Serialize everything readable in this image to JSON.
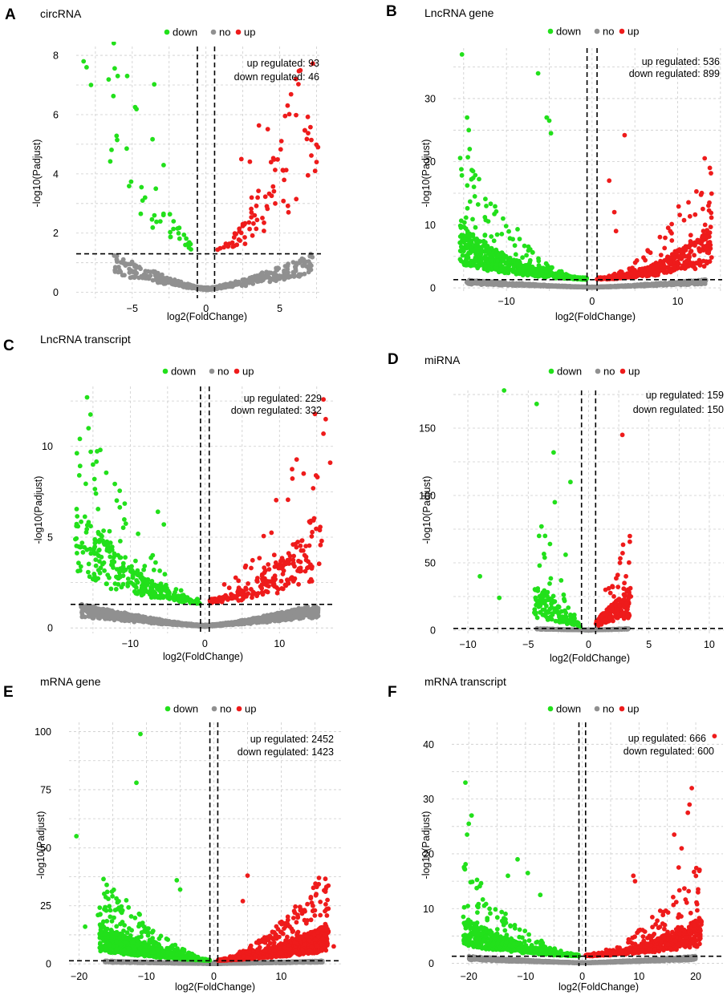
{
  "colors": {
    "down": "#22e01b",
    "no": "#909090",
    "up": "#ee1b1b",
    "grid": "#cccccc"
  },
  "legend": {
    "down": "down",
    "no": "no",
    "up": "up"
  },
  "chart_data": [
    {
      "panel": "A",
      "title": "circRNA",
      "type": "scatter",
      "xlabel": "log2(FoldChange)",
      "ylabel": "-log10(Padjust)",
      "xlim": [
        -8.8,
        7.8
      ],
      "ylim": [
        -0.2,
        8.3
      ],
      "xticks": [
        -5,
        0,
        5
      ],
      "yticks": [
        0,
        2,
        4,
        6,
        8
      ],
      "fc_threshold": 0.585,
      "p_threshold": 1.3,
      "up_label": "up regulated: 93",
      "down_label": "down regulated: 46",
      "counts": {
        "up": 93,
        "down": 46
      },
      "shape": {
        "xmin": -6.6,
        "xmax": 7.6,
        "amp": 2.6,
        "expo": 2.2,
        "ymaxNo": 1.3
      },
      "n": {
        "no": 520,
        "down": 46,
        "up": 93
      },
      "highlights": [
        {
          "x": -8.3,
          "y": 7.8,
          "g": "down"
        },
        {
          "x": -8.1,
          "y": 7.6,
          "g": "down"
        },
        {
          "x": -7.8,
          "y": 7.0,
          "g": "down"
        },
        {
          "x": -3.4,
          "y": 3.5,
          "g": "down"
        },
        {
          "x": -4.3,
          "y": 3.1,
          "g": "down"
        },
        {
          "x": -2.2,
          "y": 2.4,
          "g": "down"
        },
        {
          "x": -3.5,
          "y": 2.6,
          "g": "down"
        },
        {
          "x": -1.4,
          "y": 1.6,
          "g": "down"
        },
        {
          "x": 6.1,
          "y": 7.2,
          "g": "up"
        },
        {
          "x": 7.6,
          "y": 4.9,
          "g": "up"
        },
        {
          "x": 7.4,
          "y": 4.1,
          "g": "up"
        },
        {
          "x": 7.5,
          "y": 4.4,
          "g": "up"
        },
        {
          "x": 2.4,
          "y": 4.5,
          "g": "up"
        },
        {
          "x": 3.1,
          "y": 3.2,
          "g": "up"
        },
        {
          "x": 4.7,
          "y": 3.0,
          "g": "up"
        },
        {
          "x": 3.3,
          "y": 2.6,
          "g": "up"
        }
      ]
    },
    {
      "panel": "B",
      "title": "LncRNA gene",
      "type": "scatter",
      "xlabel": "log2(FoldChange)",
      "ylabel": "-log10(Padjust)",
      "xlim": [
        -16.2,
        15.2
      ],
      "ylim": [
        -0.5,
        38
      ],
      "xticks": [
        -10,
        0,
        10
      ],
      "yticks": [
        0,
        10,
        20,
        30
      ],
      "fc_threshold": 0.585,
      "p_threshold": 1.3,
      "up_label": "up regulated: 536",
      "down_label": "down regulated: 899",
      "counts": {
        "up": 536,
        "down": 899
      },
      "shape": {
        "xmin": -15.5,
        "xmax": 14.0,
        "amp": 2.2,
        "expo": 2.0,
        "ymaxNo": 1.3
      },
      "n": {
        "no": 1400,
        "down": 700,
        "up": 450
      },
      "highlights": [
        {
          "x": -15.2,
          "y": 37.0,
          "g": "down"
        },
        {
          "x": -6.3,
          "y": 34.0,
          "g": "down"
        },
        {
          "x": -14.6,
          "y": 27.0,
          "g": "down"
        },
        {
          "x": -5.3,
          "y": 27.0,
          "g": "down"
        },
        {
          "x": -5.0,
          "y": 26.5,
          "g": "down"
        },
        {
          "x": -14.4,
          "y": 25.0,
          "g": "down"
        },
        {
          "x": -4.8,
          "y": 24.5,
          "g": "down"
        },
        {
          "x": -14.3,
          "y": 22.0,
          "g": "down"
        },
        {
          "x": -13.9,
          "y": 18.5,
          "g": "down"
        },
        {
          "x": -13.8,
          "y": 16.0,
          "g": "down"
        },
        {
          "x": -13.7,
          "y": 14.5,
          "g": "down"
        },
        {
          "x": -8.7,
          "y": 9.3,
          "g": "down"
        },
        {
          "x": 3.8,
          "y": 24.2,
          "g": "up"
        },
        {
          "x": 13.7,
          "y": 13.5,
          "g": "up"
        },
        {
          "x": 13.2,
          "y": 10.0,
          "g": "up"
        },
        {
          "x": 13.0,
          "y": 9.0,
          "g": "up"
        },
        {
          "x": 12.5,
          "y": 7.5,
          "g": "up"
        },
        {
          "x": 2.0,
          "y": 17.0,
          "g": "up"
        },
        {
          "x": 2.6,
          "y": 12.0,
          "g": "up"
        },
        {
          "x": 2.8,
          "y": 9.0,
          "g": "up"
        }
      ]
    },
    {
      "panel": "C",
      "title": "LncRNA transcript",
      "type": "scatter",
      "xlabel": "log2(FoldChange)",
      "ylabel": "-log10(Padjust)",
      "xlim": [
        -18,
        17.5
      ],
      "ylim": [
        -0.3,
        13.3
      ],
      "xticks": [
        -10,
        0,
        10
      ],
      "yticks": [
        0,
        5,
        10
      ],
      "fc_threshold": 0.585,
      "p_threshold": 1.3,
      "up_label": "up regulated: 229",
      "down_label": "down regulated: 332",
      "counts": {
        "up": 229,
        "down": 332
      },
      "shape": {
        "xmin": -17.5,
        "xmax": 16.0,
        "amp": 1.4,
        "expo": 1.8,
        "ymaxNo": 1.3
      },
      "n": {
        "no": 1700,
        "down": 332,
        "up": 229
      },
      "highlights": [
        {
          "x": -15.8,
          "y": 12.7,
          "g": "down"
        },
        {
          "x": -15.6,
          "y": 11.0,
          "g": "down"
        },
        {
          "x": -15.3,
          "y": 9.7,
          "g": "down"
        },
        {
          "x": -15.0,
          "y": 9.0,
          "g": "down"
        },
        {
          "x": -14.8,
          "y": 8.2,
          "g": "down"
        },
        {
          "x": -14.6,
          "y": 7.4,
          "g": "down"
        },
        {
          "x": -6.3,
          "y": 6.4,
          "g": "down"
        },
        {
          "x": -5.5,
          "y": 5.7,
          "g": "down"
        },
        {
          "x": -7.0,
          "y": 4.0,
          "g": "down"
        },
        {
          "x": -8.2,
          "y": 3.2,
          "g": "down"
        },
        {
          "x": 16.2,
          "y": 11.5,
          "g": "up"
        },
        {
          "x": 15.9,
          "y": 10.7,
          "g": "up"
        },
        {
          "x": 16.8,
          "y": 9.1,
          "g": "up"
        },
        {
          "x": 14.9,
          "y": 8.4,
          "g": "up"
        },
        {
          "x": 14.2,
          "y": 5.9,
          "g": "up"
        },
        {
          "x": 6.2,
          "y": 3.3,
          "g": "up"
        },
        {
          "x": 2.6,
          "y": 2.4,
          "g": "up"
        },
        {
          "x": 4.5,
          "y": 2.6,
          "g": "up"
        }
      ]
    },
    {
      "panel": "D",
      "title": "miRNA",
      "type": "scatter",
      "xlabel": "log2(FoldChange)",
      "ylabel": "-log10(Padjust)",
      "xlim": [
        -11.2,
        11.2
      ],
      "ylim": [
        -3,
        178
      ],
      "xticks": [
        -10,
        -5,
        0,
        5,
        10
      ],
      "yticks": [
        0,
        50,
        100,
        150
      ],
      "fc_threshold": 0.585,
      "p_threshold": 1.3,
      "up_label": "up regulated: 159",
      "down_label": "down regulated: 150",
      "counts": {
        "up": 159,
        "down": 150
      },
      "shape": {
        "xmin": -4.5,
        "xmax": 3.5,
        "amp": 8.0,
        "expo": 1.0,
        "ymaxNo": 1.3
      },
      "n": {
        "no": 500,
        "down": 150,
        "up": 159
      },
      "highlights": [
        {
          "x": -7.0,
          "y": 178.0,
          "g": "down"
        },
        {
          "x": -4.3,
          "y": 168.0,
          "g": "down"
        },
        {
          "x": -2.9,
          "y": 132.0,
          "g": "down"
        },
        {
          "x": -1.5,
          "y": 110.0,
          "g": "down"
        },
        {
          "x": -2.8,
          "y": 95.0,
          "g": "down"
        },
        {
          "x": -3.9,
          "y": 77.0,
          "g": "down"
        },
        {
          "x": -3.6,
          "y": 70.0,
          "g": "down"
        },
        {
          "x": -4.1,
          "y": 70.0,
          "g": "down"
        },
        {
          "x": -3.2,
          "y": 64.0,
          "g": "down"
        },
        {
          "x": -1.9,
          "y": 56.0,
          "g": "down"
        },
        {
          "x": -9.0,
          "y": 40.0,
          "g": "down"
        },
        {
          "x": -7.4,
          "y": 24.0,
          "g": "down"
        },
        {
          "x": 2.8,
          "y": 145.0,
          "g": "up"
        },
        {
          "x": 2.6,
          "y": 50.0,
          "g": "up"
        },
        {
          "x": 3.1,
          "y": 40.0,
          "g": "up"
        },
        {
          "x": 3.5,
          "y": 25.0,
          "g": "up"
        },
        {
          "x": 2.0,
          "y": 32.0,
          "g": "up"
        },
        {
          "x": 1.4,
          "y": 30.0,
          "g": "up"
        }
      ]
    },
    {
      "panel": "E",
      "title": "mRNA gene",
      "type": "scatter",
      "xlabel": "log2(FoldChange)",
      "ylabel": "-log10(Padjust)",
      "xlim": [
        -21.5,
        19
      ],
      "ylim": [
        -1,
        104
      ],
      "xticks": [
        -20,
        -10,
        0,
        10
      ],
      "yticks": [
        0,
        25,
        50,
        75,
        100
      ],
      "fc_threshold": 0.585,
      "p_threshold": 1.3,
      "up_label": "up regulated: 2452",
      "down_label": "down regulated: 1423",
      "counts": {
        "up": 2452,
        "down": 1423
      },
      "shape": {
        "xmin": -17.0,
        "xmax": 17.0,
        "amp": 4.0,
        "expo": 1.6,
        "ymaxNo": 1.3
      },
      "n": {
        "no": 1800,
        "down": 1100,
        "up": 1300
      },
      "highlights": [
        {
          "x": -10.9,
          "y": 99.0,
          "g": "down"
        },
        {
          "x": -11.5,
          "y": 78.0,
          "g": "down"
        },
        {
          "x": -20.4,
          "y": 55.0,
          "g": "down"
        },
        {
          "x": -15.9,
          "y": 34.0,
          "g": "down"
        },
        {
          "x": -17.2,
          "y": 21.0,
          "g": "down"
        },
        {
          "x": -19.1,
          "y": 16.0,
          "g": "down"
        },
        {
          "x": -5.5,
          "y": 36.0,
          "g": "down"
        },
        {
          "x": -5.0,
          "y": 32.0,
          "g": "down"
        },
        {
          "x": 15.6,
          "y": 37.0,
          "g": "up"
        },
        {
          "x": 15.2,
          "y": 30.0,
          "g": "up"
        },
        {
          "x": 14.7,
          "y": 25.0,
          "g": "up"
        },
        {
          "x": 15.0,
          "y": 23.0,
          "g": "up"
        },
        {
          "x": 5.0,
          "y": 38.0,
          "g": "up"
        },
        {
          "x": 4.3,
          "y": 27.0,
          "g": "up"
        },
        {
          "x": 17.8,
          "y": 7.5,
          "g": "up"
        },
        {
          "x": 14.2,
          "y": 10.0,
          "g": "up"
        }
      ]
    },
    {
      "panel": "F",
      "title": "mRNA transcript",
      "type": "scatter",
      "xlabel": "log2(FoldChange)",
      "ylabel": "-log10(Padjust)",
      "xlim": [
        -23,
        24.8
      ],
      "ylim": [
        -0.5,
        44
      ],
      "xticks": [
        -20,
        -10,
        0,
        10,
        20
      ],
      "yticks": [
        0,
        10,
        20,
        30,
        40
      ],
      "fc_threshold": 0.585,
      "p_threshold": 1.3,
      "up_label": "up regulated: 666",
      "down_label": "down regulated: 600",
      "counts": {
        "up": 666,
        "down": 600
      },
      "shape": {
        "xmin": -21.0,
        "xmax": 21.0,
        "amp": 1.8,
        "expo": 1.8,
        "ymaxNo": 1.3
      },
      "n": {
        "no": 2000,
        "down": 600,
        "up": 666
      },
      "highlights": [
        {
          "x": 23.3,
          "y": 41.5,
          "g": "up"
        },
        {
          "x": 19.3,
          "y": 32.0,
          "g": "up"
        },
        {
          "x": 18.9,
          "y": 29.0,
          "g": "up"
        },
        {
          "x": 18.6,
          "y": 27.5,
          "g": "up"
        },
        {
          "x": 16.2,
          "y": 23.5,
          "g": "up"
        },
        {
          "x": 17.5,
          "y": 21.0,
          "g": "up"
        },
        {
          "x": 17.0,
          "y": 17.5,
          "g": "up"
        },
        {
          "x": 9.0,
          "y": 16.0,
          "g": "up"
        },
        {
          "x": 9.3,
          "y": 15.0,
          "g": "up"
        },
        {
          "x": -20.6,
          "y": 33.0,
          "g": "down"
        },
        {
          "x": -19.5,
          "y": 27.0,
          "g": "down"
        },
        {
          "x": -20.0,
          "y": 25.5,
          "g": "down"
        },
        {
          "x": -20.3,
          "y": 23.5,
          "g": "down"
        },
        {
          "x": -11.4,
          "y": 19.0,
          "g": "down"
        },
        {
          "x": -9.6,
          "y": 16.5,
          "g": "down"
        },
        {
          "x": -13.1,
          "y": 16.0,
          "g": "down"
        },
        {
          "x": -18.5,
          "y": 10.5,
          "g": "down"
        },
        {
          "x": -7.4,
          "y": 12.5,
          "g": "down"
        }
      ]
    }
  ]
}
